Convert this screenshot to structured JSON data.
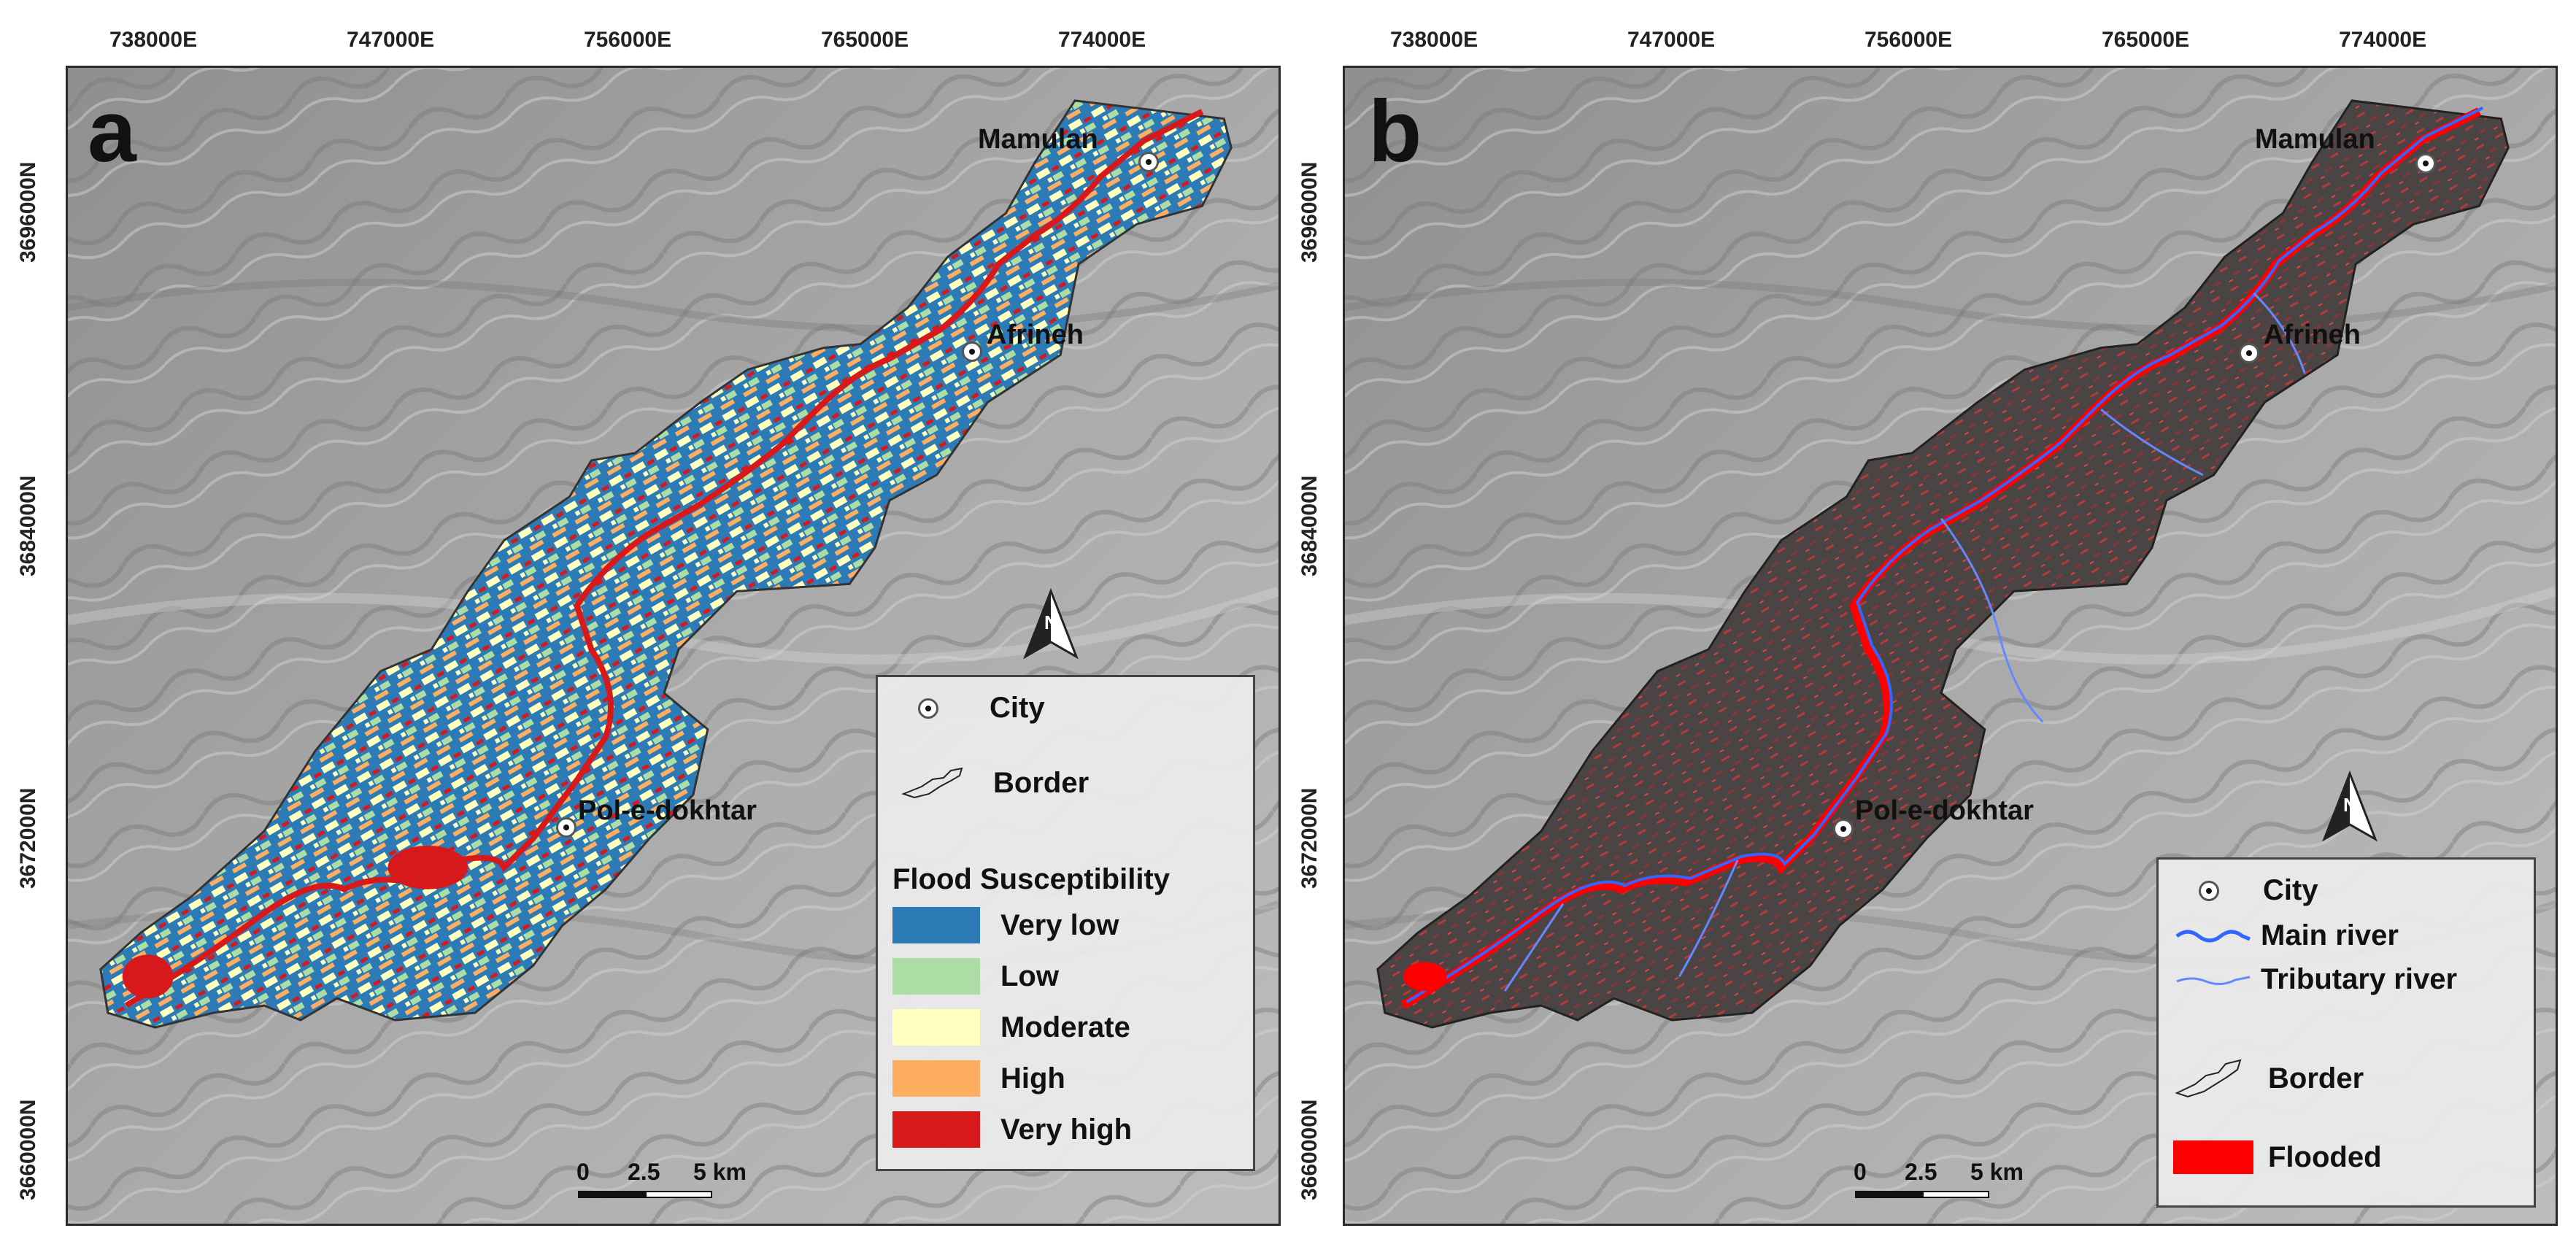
{
  "x_ticks": [
    "738000E",
    "747000E",
    "756000E",
    "765000E",
    "774000E"
  ],
  "y_ticks": [
    "3696000N",
    "3684000N",
    "3672000N",
    "3660000N"
  ],
  "panel_a": {
    "label": "a",
    "cities": [
      "Mamulan",
      "Afrineh",
      "Pol-e-dokhtar"
    ],
    "legend": {
      "city": "City",
      "border": "Border",
      "title": "Flood Susceptibility",
      "classes": [
        {
          "label": "Very low",
          "color": "#2c7bb6"
        },
        {
          "label": "Low",
          "color": "#abdda4"
        },
        {
          "label": "Moderate",
          "color": "#ffffbf"
        },
        {
          "label": "High",
          "color": "#fdae61"
        },
        {
          "label": "Very high",
          "color": "#d7191c"
        }
      ]
    },
    "scale": {
      "zero": "0",
      "mid": "2.5",
      "end": "5 km"
    }
  },
  "panel_b": {
    "label": "b",
    "cities": [
      "Mamulan",
      "Afrineh",
      "Pol-e-dokhtar"
    ],
    "legend": {
      "city": "City",
      "main_river": "Main river",
      "tributary_river": "Tributary river",
      "border": "Border",
      "flooded": "Flooded",
      "main_river_color": "#3366ff",
      "tributary_color": "#6688ff",
      "flooded_color": "#ff0000"
    },
    "scale": {
      "zero": "0",
      "mid": "2.5",
      "end": "5 km"
    }
  },
  "icons": [
    "north-arrow-icon",
    "city-icon",
    "border-icon"
  ]
}
